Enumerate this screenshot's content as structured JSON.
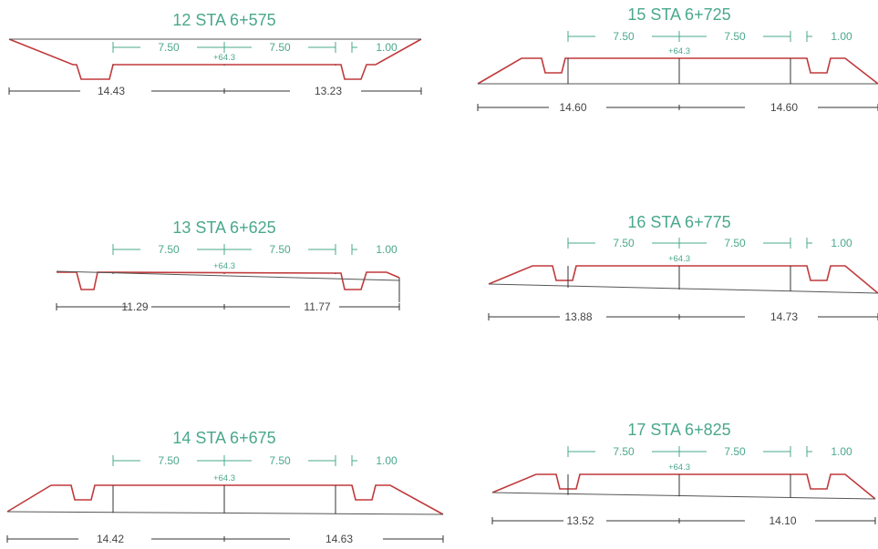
{
  "colors": {
    "green": "#4aa88c",
    "red": "#c0393b",
    "dark": "#333333"
  },
  "sections": [
    {
      "title": "12 STA 6+575",
      "dim_left": "7.50",
      "dim_right": "7.50",
      "dim_extra": "1.00",
      "elevation": "+64.3",
      "width_left": "14.43",
      "width_right": "13.23"
    },
    {
      "title": "15 STA 6+725",
      "dim_left": "7.50",
      "dim_right": "7.50",
      "dim_extra": "1.00",
      "elevation": "+64.3",
      "width_left": "14.60",
      "width_right": "14.60"
    },
    {
      "title": "13 STA 6+625",
      "dim_left": "7.50",
      "dim_right": "7.50",
      "dim_extra": "1.00",
      "elevation": "+64.3",
      "width_left": "11.29",
      "width_right": "11.77"
    },
    {
      "title": "16 STA 6+775",
      "dim_left": "7.50",
      "dim_right": "7.50",
      "dim_extra": "1.00",
      "elevation": "+64.3",
      "width_left": "13.88",
      "width_right": "14.73"
    },
    {
      "title": "14 STA 6+675",
      "dim_left": "7.50",
      "dim_right": "7.50",
      "dim_extra": "1.00",
      "elevation": "+64.3",
      "width_left": "14.42",
      "width_right": "14.63"
    },
    {
      "title": "17 STA 6+825",
      "dim_left": "7.50",
      "dim_right": "7.50",
      "dim_extra": "1.00",
      "elevation": "+64.3",
      "width_left": "13.52",
      "width_right": "14.10"
    }
  ]
}
